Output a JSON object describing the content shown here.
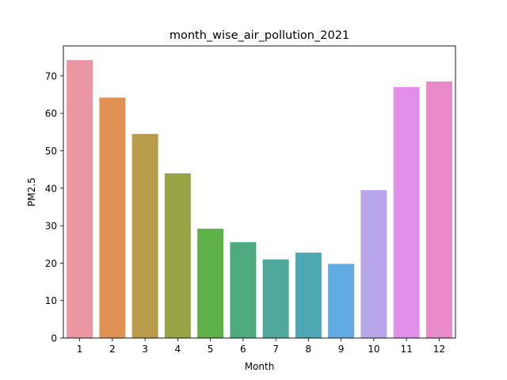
{
  "chart_data": {
    "type": "bar",
    "title": "month_wise_air_pollution_2021",
    "xlabel": "Month",
    "ylabel": "PM2.5",
    "categories": [
      "1",
      "2",
      "3",
      "4",
      "5",
      "6",
      "7",
      "8",
      "9",
      "10",
      "11",
      "12"
    ],
    "values": [
      74.2,
      64.2,
      54.5,
      44.0,
      29.2,
      25.6,
      21.0,
      22.8,
      19.8,
      39.5,
      67.0,
      68.5
    ],
    "ylim": [
      0,
      78
    ],
    "yticks": [
      0,
      10,
      20,
      30,
      40,
      50,
      60,
      70
    ],
    "grid": false,
    "colors": [
      "#ea96a3",
      "#e19153",
      "#b99c4a",
      "#9aa446",
      "#5eb049",
      "#4dab7f",
      "#4fa89b",
      "#4ea8b4",
      "#62aae2",
      "#b7a6ea",
      "#e18fe7",
      "#ea8bc9"
    ]
  }
}
